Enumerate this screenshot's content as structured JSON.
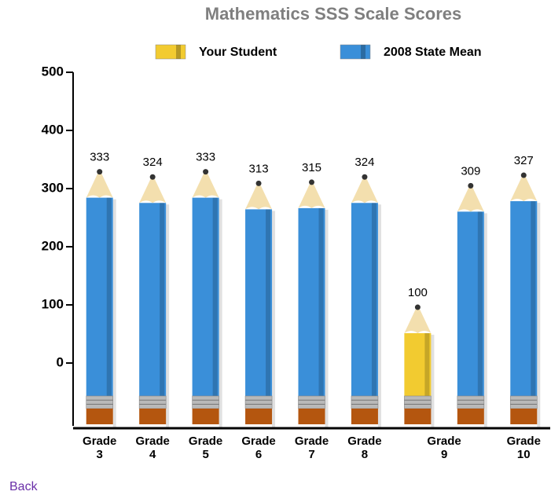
{
  "chart_data": {
    "type": "pencil-bar",
    "title": "Mathematics SSS Scale Scores",
    "categories": [
      "Grade 3",
      "Grade 4",
      "Grade 5",
      "Grade 6",
      "Grade 7",
      "Grade 8",
      "Grade 9",
      "Grade 10"
    ],
    "series": [
      {
        "name": "Your Student",
        "color": "#f2cb30",
        "values": [
          null,
          null,
          null,
          null,
          null,
          null,
          100,
          null
        ]
      },
      {
        "name": "2008 State Mean",
        "color": "#3a8fd9",
        "values": [
          333,
          324,
          333,
          313,
          315,
          324,
          309,
          327
        ]
      }
    ],
    "ylim": [
      -108,
      500
    ],
    "yticks": [
      0,
      100,
      200,
      300,
      400,
      500
    ]
  },
  "footer": {
    "link": "Back"
  }
}
